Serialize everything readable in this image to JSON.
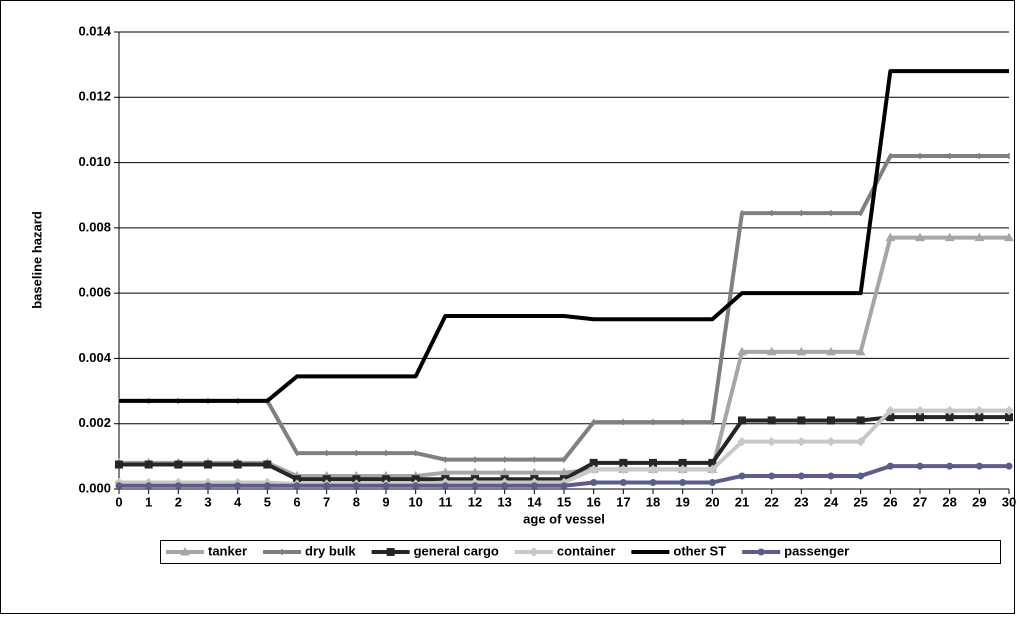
{
  "chart_data": {
    "type": "line",
    "x_label": "age of vessel",
    "y_label": "baseline hazard",
    "x": [
      0,
      1,
      2,
      3,
      4,
      5,
      6,
      7,
      8,
      9,
      10,
      11,
      12,
      13,
      14,
      15,
      16,
      17,
      18,
      19,
      20,
      21,
      22,
      23,
      24,
      25,
      26,
      27,
      28,
      29,
      30
    ],
    "xlim": [
      0,
      30
    ],
    "xticks": [
      0,
      1,
      2,
      3,
      4,
      5,
      6,
      7,
      8,
      9,
      10,
      11,
      12,
      13,
      14,
      15,
      16,
      17,
      18,
      19,
      20,
      21,
      22,
      23,
      24,
      25,
      26,
      27,
      28,
      29,
      30
    ],
    "ylim": [
      0,
      0.014
    ],
    "yticks": [
      {
        "value": 0,
        "label": "0.000"
      },
      {
        "value": 0.002,
        "label": "0.002"
      },
      {
        "value": 0.004,
        "label": "0.004"
      },
      {
        "value": 0.006,
        "label": "0.006"
      },
      {
        "value": 0.008,
        "label": "0.008"
      },
      {
        "value": 0.01,
        "label": "0.010"
      },
      {
        "value": 0.012,
        "label": "0.012"
      },
      {
        "value": 0.014,
        "label": "0.014"
      }
    ],
    "grid": true,
    "legend": "bottom",
    "series": [
      {
        "name": "tanker",
        "color": "#a6a6a6",
        "marker": "triangle",
        "values": [
          0.0008,
          0.0008,
          0.0008,
          0.0008,
          0.0008,
          0.0008,
          0.0004,
          0.0004,
          0.0004,
          0.0004,
          0.0004,
          0.0005,
          0.0005,
          0.0005,
          0.0005,
          0.0005,
          0.0006,
          0.0006,
          0.0006,
          0.0006,
          0.0006,
          0.0042,
          0.0042,
          0.0042,
          0.0042,
          0.0042,
          0.0077,
          0.0077,
          0.0077,
          0.0077,
          0.0077
        ]
      },
      {
        "name": "dry bulk",
        "color": "#808080",
        "marker": "dash",
        "values": [
          0.0027,
          0.0027,
          0.0027,
          0.0027,
          0.0027,
          0.0027,
          0.0011,
          0.0011,
          0.0011,
          0.0011,
          0.0011,
          0.0009,
          0.0009,
          0.0009,
          0.0009,
          0.0009,
          0.00205,
          0.00205,
          0.00205,
          0.00205,
          0.00205,
          0.00845,
          0.00845,
          0.00845,
          0.00845,
          0.00845,
          0.0102,
          0.0102,
          0.0102,
          0.0102,
          0.0102
        ]
      },
      {
        "name": "general cargo",
        "color": "#262626",
        "marker": "square",
        "values": [
          0.00075,
          0.00075,
          0.00075,
          0.00075,
          0.00075,
          0.00075,
          0.0003,
          0.0003,
          0.0003,
          0.0003,
          0.0003,
          0.0003,
          0.0003,
          0.0003,
          0.0003,
          0.0003,
          0.0008,
          0.0008,
          0.0008,
          0.0008,
          0.0008,
          0.0021,
          0.0021,
          0.0021,
          0.0021,
          0.0021,
          0.0022,
          0.0022,
          0.0022,
          0.0022,
          0.0022
        ]
      },
      {
        "name": "container",
        "color": "#c8c8c8",
        "marker": "diamond",
        "values": [
          0.0002,
          0.0002,
          0.0002,
          0.0002,
          0.0002,
          0.0002,
          0.00015,
          0.00015,
          0.00015,
          0.00015,
          0.00015,
          0.0002,
          0.0002,
          0.0002,
          0.0002,
          0.0002,
          0.0006,
          0.0006,
          0.0006,
          0.0006,
          0.0006,
          0.00145,
          0.00145,
          0.00145,
          0.00145,
          0.00145,
          0.0024,
          0.0024,
          0.0024,
          0.0024,
          0.0024
        ]
      },
      {
        "name": "other ST",
        "color": "#000000",
        "marker": "none",
        "values": [
          0.0027,
          0.0027,
          0.0027,
          0.0027,
          0.0027,
          0.0027,
          0.00345,
          0.00345,
          0.00345,
          0.00345,
          0.00345,
          0.0053,
          0.0053,
          0.0053,
          0.0053,
          0.0053,
          0.0052,
          0.0052,
          0.0052,
          0.0052,
          0.0052,
          0.006,
          0.006,
          0.006,
          0.006,
          0.006,
          0.0128,
          0.0128,
          0.0128,
          0.0128,
          0.0128
        ]
      },
      {
        "name": "passenger",
        "color": "#5c5c8a",
        "marker": "circle",
        "values": [
          0.0001,
          0.0001,
          0.0001,
          0.0001,
          0.0001,
          0.0001,
          0.0001,
          0.0001,
          0.0001,
          0.0001,
          0.0001,
          0.0001,
          0.0001,
          0.0001,
          0.0001,
          0.0001,
          0.0002,
          0.0002,
          0.0002,
          0.0002,
          0.0002,
          0.0004,
          0.0004,
          0.0004,
          0.0004,
          0.0004,
          0.0007,
          0.0007,
          0.0007,
          0.0007,
          0.0007
        ]
      }
    ]
  }
}
